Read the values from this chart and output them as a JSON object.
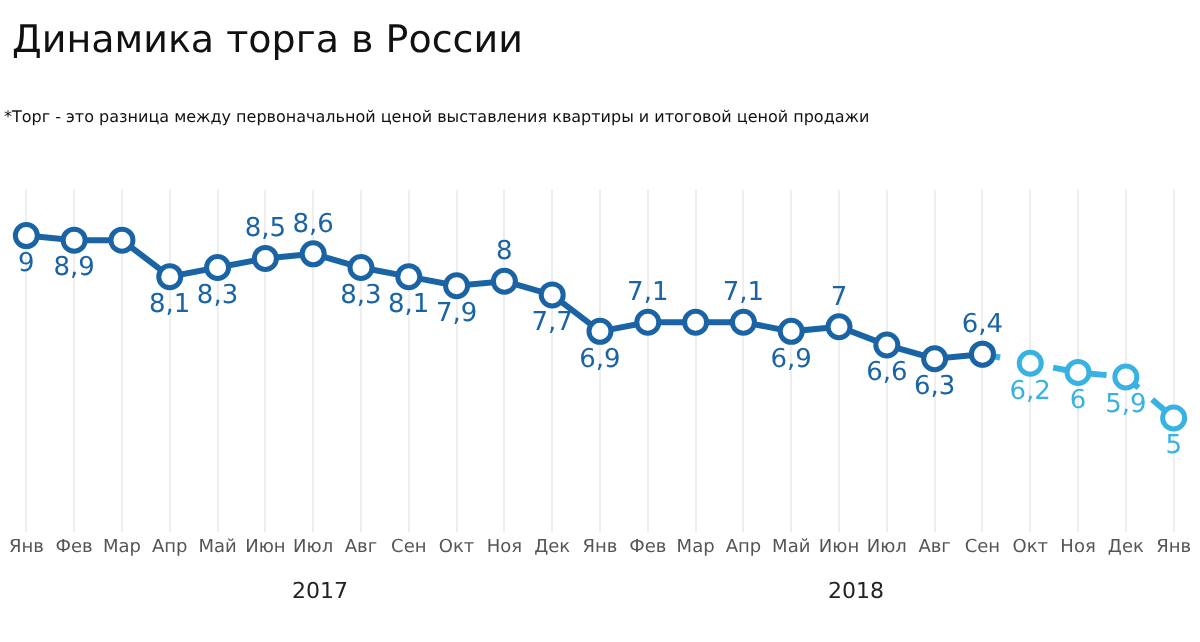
{
  "chart_data": {
    "type": "line",
    "title": "Динамика торга в России",
    "subtitle": "*Торг - это разница между первоначальной ценой выставления квартиры и итоговой ценой продажи",
    "categories": [
      "Янв",
      "Фев",
      "Мар",
      "Апр",
      "Май",
      "Июн",
      "Июл",
      "Авг",
      "Сен",
      "Окт",
      "Ноя",
      "Дек",
      "Янв",
      "Фев",
      "Мар",
      "Апр",
      "Май",
      "Июн",
      "Июл",
      "Авг",
      "Сен",
      "Окт",
      "Ноя",
      "Дек",
      "Янв"
    ],
    "series": [
      {
        "color": "#38b2e3",
        "line_style": "dashed",
        "values": [
          null,
          null,
          null,
          null,
          null,
          null,
          null,
          null,
          null,
          null,
          null,
          null,
          null,
          null,
          null,
          null,
          null,
          null,
          null,
          null,
          6.4,
          6.2,
          6,
          5.9,
          5
        ],
        "value_labels": [
          null,
          null,
          null,
          null,
          null,
          null,
          null,
          null,
          null,
          null,
          null,
          null,
          null,
          null,
          null,
          null,
          null,
          null,
          null,
          null,
          null,
          "6,2",
          "6",
          "5,9",
          "5"
        ]
      },
      {
        "color": "#1a64a6",
        "line_style": "solid",
        "values": [
          9,
          8.9,
          8.9,
          8.1,
          8.3,
          8.5,
          8.6,
          8.3,
          8.1,
          7.9,
          8,
          7.7,
          6.9,
          7.1,
          7.1,
          7.1,
          6.9,
          7,
          6.6,
          6.3,
          6.4,
          null,
          null,
          null,
          null
        ],
        "value_labels": [
          "9",
          "8,9",
          null,
          "8,1",
          "8,3",
          "8,5",
          "8,6",
          "8,3",
          "8,1",
          "7,9",
          "8",
          "7,7",
          "6,9",
          "7,1",
          null,
          "7,1",
          "6,9",
          "7",
          "6,6",
          "6,3",
          "6,4",
          null,
          null,
          null,
          null
        ]
      }
    ],
    "annotations": [
      "2017",
      "2018"
    ],
    "marker": "circle",
    "grid": "x"
  }
}
